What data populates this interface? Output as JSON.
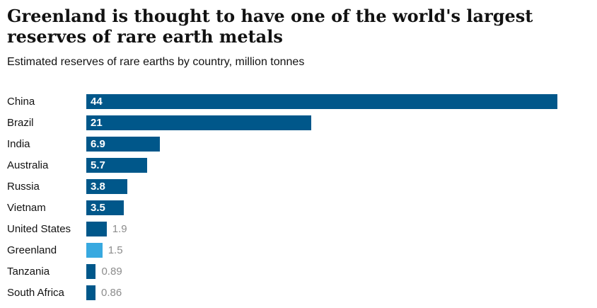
{
  "chart_data": {
    "type": "bar",
    "orientation": "horizontal",
    "title": "Greenland is thought to have one of the world's largest reserves of rare earth metals",
    "subtitle": "Estimated reserves of rare earths by country, million tonnes",
    "categories": [
      "China",
      "Brazil",
      "India",
      "Australia",
      "Russia",
      "Vietnam",
      "United States",
      "Greenland",
      "Tanzania",
      "South Africa"
    ],
    "values": [
      44,
      21,
      6.9,
      5.7,
      3.8,
      3.5,
      1.9,
      1.5,
      0.89,
      0.86
    ],
    "value_labels": [
      "44",
      "21",
      "6.9",
      "5.7",
      "3.8",
      "3.5",
      "1.9",
      "1.5",
      "0.89",
      "0.86"
    ],
    "xlim": [
      0,
      44
    ],
    "xlabel": "",
    "ylabel": "",
    "grid": false,
    "legend": false,
    "highlight_category": "Greenland",
    "bar_color": "#00578a",
    "highlight_color": "#38a9e0",
    "inside_label_color": "#ffffff",
    "outside_label_color": "#8c8c8c"
  }
}
